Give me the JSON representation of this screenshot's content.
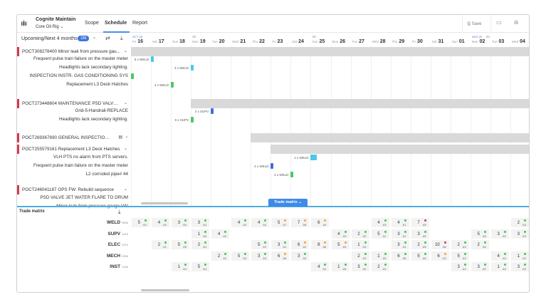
{
  "header": {
    "app_name": "Cognite Maintain",
    "site": "Core Oil Rig",
    "nav": [
      "Scope",
      "Schedule",
      "Report"
    ],
    "active_nav": "Schedule",
    "save_label": "Save"
  },
  "filter": {
    "label": "Upcoming/Next 4 months",
    "count": "199"
  },
  "timeline": {
    "months": [
      {
        "label": "OCT 26",
        "col": 0
      },
      {
        "label": "NOV 20",
        "col": 17
      }
    ],
    "weeks": [
      {
        "label": "42",
        "col": 3
      },
      {
        "label": "43",
        "col": 9
      },
      {
        "label": "44",
        "col": 17
      }
    ],
    "days": [
      [
        "Fri",
        "16"
      ],
      [
        "Sat",
        "17"
      ],
      [
        "Sun",
        "18"
      ],
      [
        "Mon",
        "19"
      ],
      [
        "Tue",
        "20"
      ],
      [
        "Wed",
        "21"
      ],
      [
        "Thu",
        "22"
      ],
      [
        "Fri",
        "23"
      ],
      [
        "Sat",
        "24"
      ],
      [
        "Sun",
        "25"
      ],
      [
        "Mon",
        "26"
      ],
      [
        "Tue",
        "27"
      ],
      [
        "Wed",
        "28"
      ],
      [
        "Thu",
        "29"
      ],
      [
        "Fri",
        "30"
      ],
      [
        "Sat",
        "31"
      ],
      [
        "Sun",
        "01"
      ],
      [
        "Mon",
        "02"
      ],
      [
        "Tue",
        "03"
      ],
      [
        "Wed",
        "04"
      ]
    ]
  },
  "colors": {
    "cyan": "#4cc8e8",
    "green": "#4cc864",
    "blue": "#3f6ee0",
    "dot_green": "#3cc850",
    "dot_orange": "#f5a623",
    "dot_red": "#d23a50"
  },
  "groups": [
    {
      "title": "POCT308278400 Minor leak from pressure gau...",
      "row": 0,
      "bar_start": 0,
      "children": [
        {
          "label": "Frequent pulse train failure on the master meter",
          "row": 1,
          "bar": {
            "col": 1,
            "text": "5 x WELD",
            "color": "cyan",
            "num": "5"
          }
        },
        {
          "label": "Headlights lack secondary lighting.",
          "row": 2,
          "bar": {
            "col": 3,
            "text": "4 x WELD",
            "color": "cyan",
            "num": "4"
          }
        },
        {
          "label": "INSPECTION INSTR. GAS CONDITIONING SYS",
          "row": 3,
          "bar": {
            "col": 0,
            "text": "",
            "color": "green",
            "num": "12"
          }
        },
        {
          "label": "Replacement L3 Deck Hatches",
          "row": 4,
          "bar": {
            "col": 2,
            "text": "4 x WELD",
            "color": "green",
            "num": "4"
          }
        }
      ]
    },
    {
      "title": "POCT273448604 MAINTENANCE PSD VALVES ...",
      "row": 6,
      "bar_start": 3,
      "children": [
        {
          "label": "Grid-5-Handrail-REPLACE",
          "row": 7,
          "bar": {
            "col": 4,
            "text": "2 x SUPV",
            "color": "blue",
            "num": "2"
          }
        },
        {
          "label": "Headlights lack secondary lighting.",
          "row": 8,
          "bar": {
            "col": 3,
            "text": "5 x SUPV",
            "color": "green",
            "num": "5"
          }
        }
      ]
    },
    {
      "title": "POCT269367690 GENERAL INSPECTION (...",
      "row": 10,
      "bar_start": 6,
      "collapsed": true,
      "children": []
    },
    {
      "title": "POCT255579161 Replacement L3 Deck Hatches",
      "row": 11.3,
      "bar_start": 7,
      "children": [
        {
          "label": "VLH PTS no alarm from PTS servers.",
          "row": 12.4,
          "bar": {
            "col": 9,
            "text": "1 x WELD",
            "color": "cyan",
            "num": "1"
          }
        },
        {
          "label": "Frequent pulse train failure on the master meter",
          "row": 13.4,
          "bar": {
            "col": 7,
            "text": "4 x WELD",
            "color": "blue",
            "num": "4"
          }
        },
        {
          "label": "L2 corroded pipe# 44",
          "row": 14.4,
          "bar": {
            "col": 8,
            "text": "4 x WELD",
            "color": "green",
            "num": "4"
          }
        }
      ]
    },
    {
      "title": "POCT246041187 OPS FW: Rebuild sequence",
      "row": 16,
      "bar_start": null,
      "children": [
        {
          "label": "PSD VALVE JET WATER FLARE TO DRUM",
          "row": 17.1,
          "bar": null
        },
        {
          "label": "Minor leak from pressure gauge V/V",
          "row": 18.1,
          "bar": null
        }
      ]
    }
  ],
  "trade_matrix": {
    "title": "Trade matrix",
    "toggle_label": "Trade matrix",
    "rows": [
      {
        "trade": "WELD",
        "hours": "283h",
        "cells": [
          [
            0,
            "5",
            "A3",
            "g"
          ],
          [
            1,
            "4",
            "A5",
            "g"
          ],
          [
            2,
            "3",
            "A4",
            "g"
          ],
          [
            3,
            "3",
            "A4",
            "g"
          ],
          [
            5,
            "4",
            "A3",
            "g"
          ],
          [
            6,
            "4",
            "A4",
            "g"
          ],
          [
            7,
            "5",
            "A7",
            "o"
          ],
          [
            8,
            "7",
            "A8",
            "o"
          ],
          [
            9,
            "6",
            "A4",
            "o"
          ],
          [
            12,
            "4",
            "A3",
            "g"
          ],
          [
            13,
            "4",
            "A1",
            "g"
          ],
          [
            14,
            "7",
            "A5",
            "r"
          ],
          [
            19,
            "2",
            "A3",
            "g"
          ]
        ]
      },
      {
        "trade": "SUPV",
        "hours": "141h",
        "cells": [
          [
            3,
            "1",
            "A5",
            "g"
          ],
          [
            4,
            "4",
            "A2",
            "g"
          ],
          [
            10,
            "4",
            "A3",
            "g"
          ],
          [
            11,
            "2",
            "A2",
            "g"
          ],
          [
            12,
            "5",
            "A1",
            "g"
          ],
          [
            13,
            "3",
            "A1",
            "g"
          ],
          [
            14,
            "3",
            "A5",
            "g"
          ],
          [
            17,
            "5",
            "A5",
            "g"
          ],
          [
            18,
            "3",
            "A5",
            "g"
          ],
          [
            19,
            "3",
            "A3",
            "g"
          ]
        ]
      },
      {
        "trade": "ELEC",
        "hours": "237h",
        "cells": [
          [
            1,
            "2",
            "A1",
            "g"
          ],
          [
            2,
            "5",
            "A5",
            "g"
          ],
          [
            3,
            "2",
            "A4",
            "g"
          ],
          [
            6,
            "5",
            "A1",
            "g"
          ],
          [
            7,
            "3",
            "A1",
            "g"
          ],
          [
            8,
            "6",
            "A2",
            "o"
          ],
          [
            9,
            "8",
            "A6",
            "o"
          ],
          [
            10,
            "5",
            "A3",
            "o"
          ],
          [
            11,
            "1",
            "A3",
            "g"
          ],
          [
            13,
            "3",
            "A1",
            "g"
          ],
          [
            14,
            "2",
            "A5",
            "g"
          ],
          [
            15,
            "10",
            "A8",
            "r"
          ],
          [
            16,
            "2",
            "A4",
            "g"
          ],
          [
            17,
            "2",
            "A5",
            "g"
          ]
        ]
      },
      {
        "trade": "MECH",
        "hours": "226h",
        "cells": [
          [
            4,
            "2",
            "A2",
            "g"
          ],
          [
            5,
            "5",
            "A4",
            "g"
          ],
          [
            6,
            "3",
            "A3",
            "g"
          ],
          [
            7,
            "6",
            "A6",
            "o"
          ],
          [
            8,
            "3",
            "A4",
            "g"
          ],
          [
            11,
            "2",
            "A3",
            "g"
          ],
          [
            12,
            "1",
            "A5",
            "g"
          ],
          [
            13,
            "6",
            "A8",
            "g"
          ],
          [
            14,
            "5",
            "A6",
            "g"
          ],
          [
            15,
            "6",
            "A3",
            "o"
          ],
          [
            16,
            "5",
            "A3",
            "g"
          ],
          [
            18,
            "4",
            "A4",
            "g"
          ],
          [
            19,
            "1",
            "A2",
            "g"
          ]
        ]
      },
      {
        "trade": "INST",
        "hours": "143h",
        "cells": [
          [
            2,
            "1",
            "A4",
            "g"
          ],
          [
            3,
            "5",
            "A4",
            "g"
          ],
          [
            9,
            "4",
            "A1",
            "g"
          ],
          [
            10,
            "1",
            "A5",
            "g"
          ],
          [
            11,
            "3",
            "A2",
            "g"
          ],
          [
            12,
            "2",
            "A2",
            "g"
          ],
          [
            16,
            "3",
            "A4",
            "g"
          ],
          [
            17,
            "3",
            "A2",
            "g"
          ],
          [
            18,
            "1",
            "A3",
            "g"
          ],
          [
            19,
            "3",
            "A3",
            "g"
          ]
        ]
      }
    ]
  }
}
